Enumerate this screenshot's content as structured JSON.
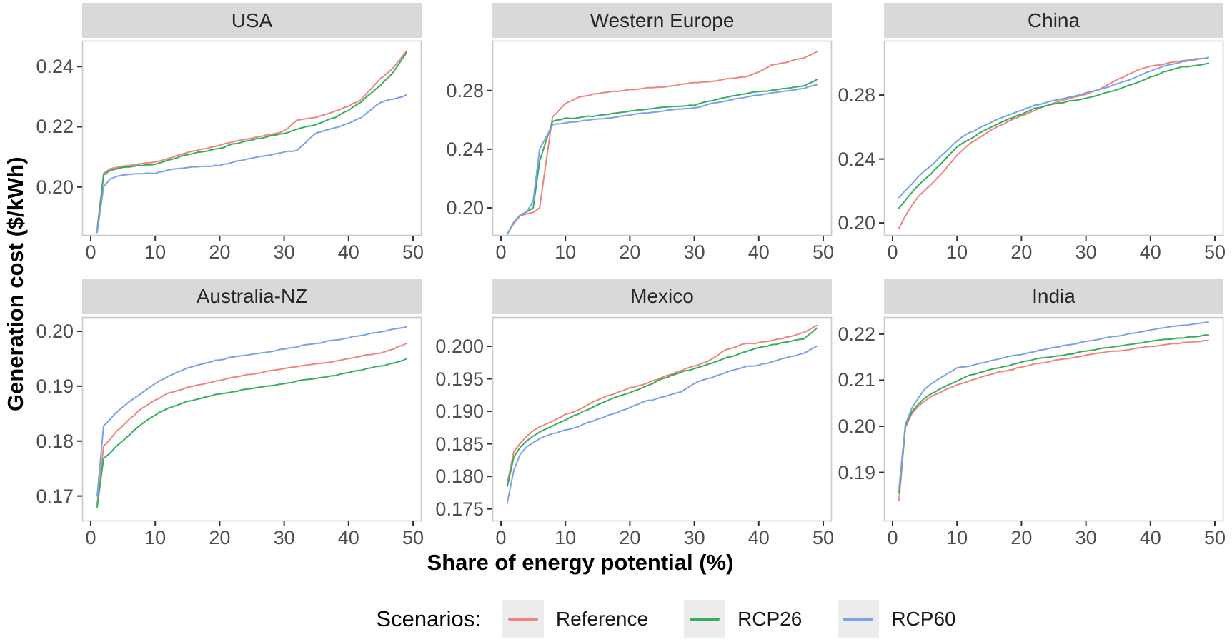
{
  "figure": {
    "legend": {
      "title": "Scenarios:",
      "entries": [
        {
          "label": "Reference",
          "color": "#ef8480"
        },
        {
          "label": "RCP26",
          "color": "#35ae5d"
        },
        {
          "label": "RCP60",
          "color": "#7ba1e8"
        }
      ]
    }
  },
  "chart_data": {
    "type": "line",
    "title": "",
    "xlabel": "Share of energy potential (%)",
    "ylabel": "Generation cost ($/kWh)",
    "legend_title": "Scenarios:",
    "legend_position": "bottom",
    "grid": false,
    "facet_layout": "2 rows x 3 cols, free x and y scales",
    "xlim": [
      0,
      50
    ],
    "xticks": [
      0,
      10,
      20,
      30,
      40,
      50
    ],
    "xtick_labels": [
      "0",
      "10",
      "20",
      "30",
      "40",
      "50"
    ],
    "x": [
      1,
      2,
      3,
      4,
      5,
      6,
      8,
      10,
      12,
      15,
      18,
      20,
      22,
      25,
      28,
      30,
      32,
      35,
      38,
      40,
      42,
      45,
      47,
      49
    ],
    "series_colors": {
      "Reference": "#ef8480",
      "RCP26": "#35ae5d",
      "RCP60": "#7ba1e8"
    },
    "panels": [
      {
        "title": "USA",
        "ylim": [
          0.1838,
          0.2486
        ],
        "yticks": [
          0.2,
          0.22,
          0.24
        ],
        "ytick_labels": [
          "0.20",
          "0.22",
          "0.24"
        ],
        "series": [
          {
            "name": "Reference",
            "values": [
              0.186,
              0.2045,
              0.206,
              0.2065,
              0.207,
              0.2072,
              0.2078,
              0.2082,
              0.2095,
              0.2115,
              0.2128,
              0.2138,
              0.215,
              0.2163,
              0.2175,
              0.2185,
              0.2222,
              0.2232,
              0.2252,
              0.2268,
              0.2292,
              0.236,
              0.2398,
              0.2452
            ]
          },
          {
            "name": "RCP26",
            "values": [
              0.1852,
              0.204,
              0.2055,
              0.206,
              0.2065,
              0.2068,
              0.2072,
              0.2076,
              0.2088,
              0.2108,
              0.212,
              0.2128,
              0.2142,
              0.2156,
              0.217,
              0.2178,
              0.2192,
              0.2208,
              0.2232,
              0.2256,
              0.2284,
              0.234,
              0.2382,
              0.2446
            ]
          },
          {
            "name": "RCP60",
            "values": [
              0.1848,
              0.2,
              0.2025,
              0.2035,
              0.204,
              0.2042,
              0.2044,
              0.2046,
              0.2056,
              0.2066,
              0.2069,
              0.2072,
              0.2082,
              0.2096,
              0.2106,
              0.2116,
              0.2122,
              0.218,
              0.2196,
              0.2212,
              0.2232,
              0.2282,
              0.2292,
              0.2306
            ]
          }
        ]
      },
      {
        "title": "Western Europe",
        "ylim": [
          0.181,
          0.314
        ],
        "yticks": [
          0.2,
          0.24,
          0.28
        ],
        "ytick_labels": [
          "0.20",
          "0.24",
          "0.28"
        ],
        "series": [
          {
            "name": "Reference",
            "values": [
              0.182,
              0.1895,
              0.1945,
              0.196,
              0.197,
              0.2,
              0.262,
              0.2715,
              0.2755,
              0.278,
              0.2795,
              0.2805,
              0.2815,
              0.2825,
              0.284,
              0.2855,
              0.286,
              0.288,
              0.2895,
              0.2925,
              0.2975,
              0.3,
              0.3025,
              0.3065
            ]
          },
          {
            "name": "RCP26",
            "values": [
              0.182,
              0.19,
              0.195,
              0.1975,
              0.2,
              0.232,
              0.259,
              0.261,
              0.2615,
              0.263,
              0.2645,
              0.266,
              0.267,
              0.2685,
              0.2695,
              0.27,
              0.2725,
              0.2755,
              0.278,
              0.2795,
              0.28,
              0.282,
              0.2835,
              0.2875
            ]
          },
          {
            "name": "RCP60",
            "values": [
              0.182,
              0.19,
              0.195,
              0.1975,
              0.205,
              0.24,
              0.2565,
              0.258,
              0.259,
              0.2605,
              0.262,
              0.2635,
              0.2645,
              0.266,
              0.2675,
              0.268,
              0.2705,
              0.273,
              0.2755,
              0.277,
              0.2785,
              0.28,
              0.2815,
              0.284
            ]
          }
        ]
      },
      {
        "title": "China",
        "ylim": [
          0.192,
          0.314
        ],
        "yticks": [
          0.2,
          0.24,
          0.28
        ],
        "ytick_labels": [
          "0.20",
          "0.24",
          "0.28"
        ],
        "series": [
          {
            "name": "Reference",
            "values": [
              0.197,
              0.2045,
              0.211,
              0.2165,
              0.2205,
              0.224,
              0.2325,
              0.2425,
              0.2495,
              0.2575,
              0.2635,
              0.267,
              0.2705,
              0.275,
              0.2785,
              0.2805,
              0.2835,
              0.29,
              0.2955,
              0.298,
              0.2995,
              0.3015,
              0.3025,
              0.3035
            ]
          },
          {
            "name": "RCP26",
            "values": [
              0.2095,
              0.2145,
              0.219,
              0.2235,
              0.2275,
              0.231,
              0.239,
              0.2475,
              0.2525,
              0.2595,
              0.265,
              0.268,
              0.2715,
              0.2745,
              0.2765,
              0.278,
              0.28,
              0.2835,
              0.288,
              0.291,
              0.2945,
              0.2975,
              0.2985,
              0.3
            ]
          },
          {
            "name": "RCP60",
            "values": [
              0.216,
              0.2205,
              0.2245,
              0.229,
              0.2325,
              0.236,
              0.2435,
              0.2515,
              0.2565,
              0.2625,
              0.2675,
              0.2705,
              0.2735,
              0.2765,
              0.279,
              0.2815,
              0.2835,
              0.287,
              0.2915,
              0.295,
              0.298,
              0.301,
              0.302,
              0.3035
            ]
          }
        ]
      },
      {
        "title": "Australia-NZ",
        "ylim": [
          0.1654,
          0.2026
        ],
        "yticks": [
          0.17,
          0.18,
          0.19,
          0.2
        ],
        "ytick_labels": [
          "0.17",
          "0.18",
          "0.19",
          "0.20"
        ],
        "series": [
          {
            "name": "Reference",
            "values": [
              0.1685,
              0.179,
              0.1803,
              0.1818,
              0.1828,
              0.184,
              0.186,
              0.1875,
              0.1887,
              0.1898,
              0.1906,
              0.1911,
              0.1916,
              0.1922,
              0.1928,
              0.1932,
              0.1936,
              0.1941,
              0.1946,
              0.195,
              0.1955,
              0.1961,
              0.1968,
              0.1978
            ]
          },
          {
            "name": "RCP26",
            "values": [
              0.168,
              0.1768,
              0.1778,
              0.179,
              0.18,
              0.1812,
              0.1832,
              0.1848,
              0.186,
              0.1872,
              0.1881,
              0.1886,
              0.189,
              0.1896,
              0.1901,
              0.1905,
              0.1909,
              0.1914,
              0.192,
              0.1925,
              0.193,
              0.1937,
              0.1942,
              0.195
            ]
          },
          {
            "name": "RCP60",
            "values": [
              0.17,
              0.1828,
              0.184,
              0.1852,
              0.1862,
              0.1872,
              0.1888,
              0.1905,
              0.1918,
              0.1933,
              0.1943,
              0.1948,
              0.1953,
              0.1958,
              0.1963,
              0.1968,
              0.1972,
              0.1978,
              0.1984,
              0.1988,
              0.1993,
              0.1999,
              0.2004,
              0.2008
            ]
          }
        ]
      },
      {
        "title": "Mexico",
        "ylim": [
          0.1731,
          0.2045
        ],
        "yticks": [
          0.175,
          0.18,
          0.185,
          0.19,
          0.195,
          0.2
        ],
        "ytick_labels": [
          "0.175",
          "0.180",
          "0.185",
          "0.190",
          "0.195",
          "0.200"
        ],
        "series": [
          {
            "name": "Reference",
            "values": [
              0.179,
              0.1838,
              0.1852,
              0.1862,
              0.187,
              0.1876,
              0.1885,
              0.1895,
              0.1902,
              0.1918,
              0.1929,
              0.1936,
              0.1941,
              0.1952,
              0.1963,
              0.197,
              0.1976,
              0.1995,
              0.2004,
              0.2005,
              0.2009,
              0.2015,
              0.2021,
              0.2032
            ]
          },
          {
            "name": "RCP26",
            "values": [
              0.1785,
              0.183,
              0.1845,
              0.1855,
              0.1862,
              0.1868,
              0.1878,
              0.1887,
              0.1896,
              0.191,
              0.1923,
              0.1929,
              0.1936,
              0.195,
              0.196,
              0.1966,
              0.1972,
              0.1982,
              0.1992,
              0.1998,
              0.2002,
              0.2008,
              0.2012,
              0.2028
            ]
          },
          {
            "name": "RCP60",
            "values": [
              0.176,
              0.181,
              0.1835,
              0.1845,
              0.1852,
              0.1858,
              0.1866,
              0.1871,
              0.1877,
              0.1888,
              0.1898,
              0.1906,
              0.1914,
              0.1922,
              0.193,
              0.1943,
              0.195,
              0.196,
              0.1969,
              0.1971,
              0.1976,
              0.1984,
              0.199,
              0.2
            ]
          }
        ]
      },
      {
        "title": "India",
        "ylim": [
          0.1794,
          0.2237
        ],
        "yticks": [
          0.19,
          0.2,
          0.21,
          0.22
        ],
        "ytick_labels": [
          "0.19",
          "0.20",
          "0.21",
          "0.22"
        ],
        "series": [
          {
            "name": "Reference",
            "values": [
              0.184,
              0.1998,
              0.2028,
              0.2044,
              0.2056,
              0.2064,
              0.2078,
              0.2089,
              0.2099,
              0.2112,
              0.2122,
              0.2128,
              0.2135,
              0.2142,
              0.2148,
              0.2154,
              0.2159,
              0.2164,
              0.2169,
              0.2173,
              0.2177,
              0.2181,
              0.2184,
              0.2186
            ]
          },
          {
            "name": "RCP26",
            "values": [
              0.1855,
              0.2001,
              0.2032,
              0.2048,
              0.2061,
              0.207,
              0.2085,
              0.2098,
              0.2111,
              0.2122,
              0.2131,
              0.2139,
              0.2145,
              0.2152,
              0.2158,
              0.2163,
              0.2168,
              0.2174,
              0.2179,
              0.2184,
              0.2188,
              0.2192,
              0.2195,
              0.2198
            ]
          },
          {
            "name": "RCP60",
            "values": [
              0.1865,
              0.2005,
              0.204,
              0.2062,
              0.208,
              0.2092,
              0.211,
              0.2126,
              0.2131,
              0.2141,
              0.2151,
              0.2156,
              0.2162,
              0.2171,
              0.2178,
              0.2184,
              0.2189,
              0.2196,
              0.2203,
              0.2209,
              0.2214,
              0.2219,
              0.2222,
              0.2226
            ]
          }
        ]
      }
    ]
  }
}
